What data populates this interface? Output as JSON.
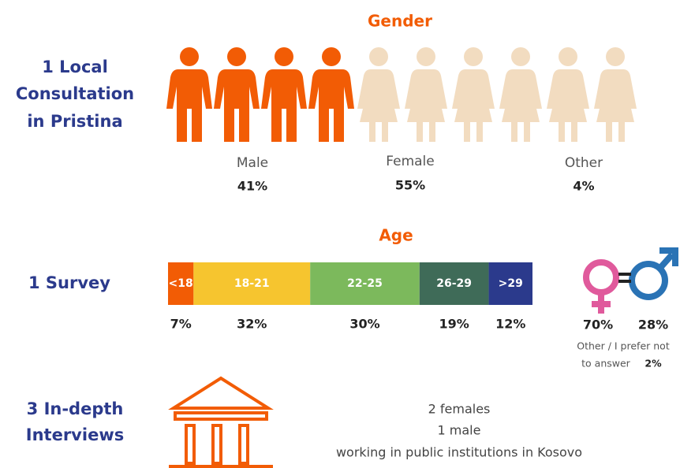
{
  "gender": {
    "title": "Gender",
    "row_label": [
      "1 Local",
      "Consultation",
      "in Pristina"
    ],
    "items": [
      {
        "label": "Male",
        "value_label": "41%"
      },
      {
        "label": "Female",
        "value_label": "55%"
      },
      {
        "label": "Other",
        "value_label": "4%"
      }
    ]
  },
  "age": {
    "title": "Age",
    "row_label": "1 Survey",
    "segments": [
      {
        "label": "<18",
        "value": 7,
        "value_label": "7%",
        "color": "#f25c05"
      },
      {
        "label": "18-21",
        "value": 32,
        "value_label": "32%",
        "color": "#f6c52f"
      },
      {
        "label": "22-25",
        "value": 30,
        "value_label": "30%",
        "color": "#7cb95c"
      },
      {
        "label": "26-29",
        "value": 19,
        "value_label": "19%",
        "color": "#3f6b58"
      },
      {
        "label": ">29",
        "value": 12,
        "value_label": "12%",
        "color": "#2b3a8c"
      }
    ]
  },
  "survey_sex": {
    "female": "70%",
    "male": "28%",
    "note": [
      "Other / I prefer not",
      "to answer"
    ],
    "note_value": "2%"
  },
  "interviews": {
    "row_label": [
      "3 In-depth",
      "Interviews"
    ],
    "lines": [
      "2 females",
      "1 male",
      "working in public institutions in Kosovo"
    ]
  }
}
